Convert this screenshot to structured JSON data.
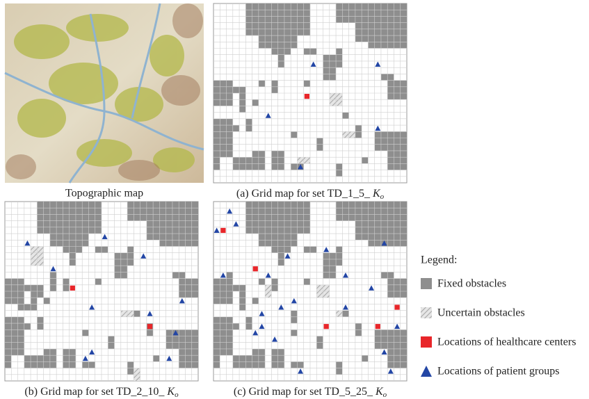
{
  "figure": {
    "panels": [
      {
        "caption": "Topographic map"
      },
      {
        "caption": "(a) Grid map for set TD_1_5_",
        "symbol": "K",
        "subscript": "o"
      },
      {
        "caption": "(b) Grid map for set TD_2_10_",
        "symbol": "K",
        "subscript": "o"
      },
      {
        "caption": "(c) Grid map for set TD_5_25_",
        "symbol": "K",
        "subscript": "o"
      }
    ],
    "legend": {
      "title": "Legend:",
      "items": [
        "Fixed obstacles",
        "Uncertain obstacles",
        "Locations of healthcare centers",
        "Locations of patient groups"
      ]
    }
  }
}
